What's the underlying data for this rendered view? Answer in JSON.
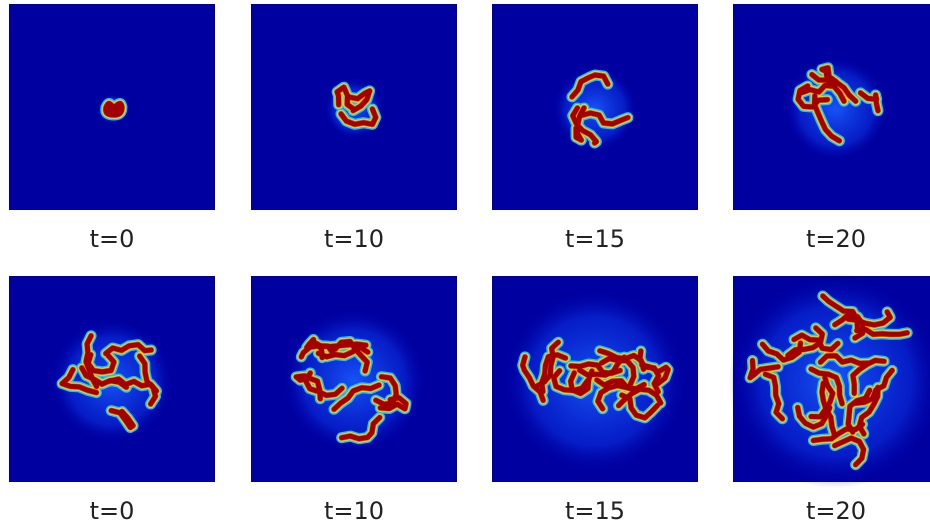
{
  "panels": [
    {
      "label": "t=0"
    },
    {
      "label": "t=10"
    },
    {
      "label": "t=15"
    },
    {
      "label": "t=20"
    },
    {
      "label": "t=0"
    },
    {
      "label": "t=10"
    },
    {
      "label": "t=15"
    },
    {
      "label": "t=20"
    }
  ]
}
